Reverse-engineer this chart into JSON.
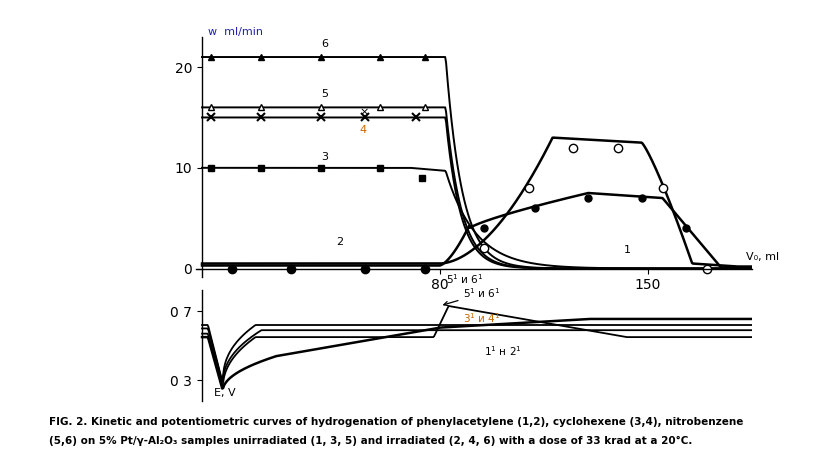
{
  "fig_width": 8.17,
  "fig_height": 4.61,
  "bg_color": "#ffffff",
  "caption_line1": "FIG. 2. Kinetic and potentiometric curves of hydrogenation of phenylacetylene (1,2), cyclohexene (3,4), nitrobenzene",
  "caption_line2": "(5,6) on 5% Pt/γ-Al₂O₃ samples unirradiated (1, 3, 5) and irradiated (2, 4, 6) with a dose of 33 krad at a 20°C.",
  "top_ylabel": "w  ml/min",
  "top_xlabel": "V₀, ml",
  "bottom_ylabel": "E, V",
  "blue_color": "#2222aa",
  "orange_color": "#cc6600",
  "black_color": "#000000"
}
